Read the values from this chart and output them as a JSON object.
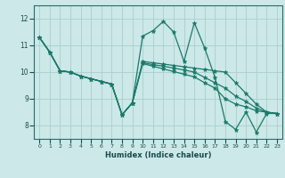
{
  "title": "",
  "xlabel": "Humidex (Indice chaleur)",
  "ylabel": "",
  "xlim": [
    -0.5,
    23.5
  ],
  "ylim": [
    7.5,
    12.5
  ],
  "yticks": [
    8,
    9,
    10,
    11,
    12
  ],
  "xticks": [
    0,
    1,
    2,
    3,
    4,
    5,
    6,
    7,
    8,
    9,
    10,
    11,
    12,
    13,
    14,
    15,
    16,
    17,
    18,
    19,
    20,
    21,
    22,
    23
  ],
  "bg_color": "#cce8e8",
  "grid_color": "#aacece",
  "line_color": "#1a7a6a",
  "lines": [
    {
      "x": [
        0,
        1,
        2,
        3,
        4,
        5,
        6,
        7,
        8,
        9,
        10,
        11,
        12,
        13,
        14,
        15,
        16,
        17,
        18,
        19,
        20,
        21,
        22,
        23
      ],
      "y": [
        11.3,
        10.75,
        10.05,
        10.0,
        9.85,
        9.75,
        9.65,
        9.55,
        8.4,
        8.85,
        11.35,
        11.55,
        11.9,
        11.5,
        10.4,
        11.85,
        10.9,
        9.8,
        8.15,
        7.85,
        8.5,
        7.75,
        8.45,
        8.45
      ]
    },
    {
      "x": [
        0,
        1,
        2,
        3,
        4,
        5,
        6,
        7,
        8,
        9,
        10,
        11,
        12,
        13,
        14,
        15,
        16,
        17,
        18,
        19,
        20,
        21,
        22,
        23
      ],
      "y": [
        11.3,
        10.75,
        10.05,
        10.0,
        9.85,
        9.75,
        9.65,
        9.55,
        8.4,
        8.85,
        10.4,
        10.35,
        10.3,
        10.25,
        10.2,
        10.15,
        10.1,
        10.05,
        10.0,
        9.6,
        9.2,
        8.8,
        8.5,
        8.45
      ]
    },
    {
      "x": [
        0,
        1,
        2,
        3,
        4,
        5,
        6,
        7,
        8,
        9,
        10,
        11,
        12,
        13,
        14,
        15,
        16,
        17,
        18,
        19,
        20,
        21,
        22,
        23
      ],
      "y": [
        11.3,
        10.75,
        10.05,
        10.0,
        9.85,
        9.75,
        9.65,
        9.55,
        8.4,
        8.85,
        10.35,
        10.28,
        10.22,
        10.15,
        10.08,
        10.0,
        9.8,
        9.6,
        9.4,
        9.1,
        8.9,
        8.65,
        8.5,
        8.45
      ]
    },
    {
      "x": [
        0,
        1,
        2,
        3,
        4,
        5,
        6,
        7,
        8,
        9,
        10,
        11,
        12,
        13,
        14,
        15,
        16,
        17,
        18,
        19,
        20,
        21,
        22,
        23
      ],
      "y": [
        11.3,
        10.75,
        10.05,
        10.0,
        9.85,
        9.75,
        9.65,
        9.55,
        8.4,
        8.85,
        10.32,
        10.22,
        10.12,
        10.02,
        9.92,
        9.82,
        9.6,
        9.4,
        9.0,
        8.8,
        8.7,
        8.55,
        8.5,
        8.45
      ]
    }
  ]
}
